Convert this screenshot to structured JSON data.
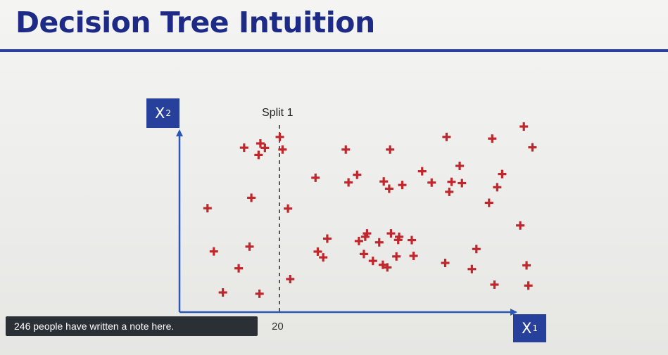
{
  "slide": {
    "title": "Decision Tree Intuition"
  },
  "chart_data": {
    "type": "scatter",
    "xlabel_main": "X",
    "xlabel_sub": "1",
    "ylabel_main": "X",
    "ylabel_sub": "2",
    "split": {
      "label": "Split 1",
      "x": 20
    },
    "x_tick_labels": [
      "20"
    ],
    "xlim": [
      0,
      100
    ],
    "ylim": [
      0,
      100
    ],
    "marker": "plus",
    "marker_color": "#c0272d",
    "axis_color": "#2a57b8",
    "points": [
      [
        6.2,
        56.0
      ],
      [
        7.6,
        32.7
      ],
      [
        9.6,
        10.6
      ],
      [
        13.1,
        23.6
      ],
      [
        15.9,
        61.6
      ],
      [
        14.3,
        88.6
      ],
      [
        17.9,
        90.9
      ],
      [
        17.5,
        84.7
      ],
      [
        18.9,
        88.5
      ],
      [
        15.5,
        35.3
      ],
      [
        17.7,
        9.9
      ],
      [
        22.2,
        94.4
      ],
      [
        22.8,
        87.6
      ],
      [
        24.0,
        55.8
      ],
      [
        24.5,
        17.8
      ],
      [
        30.1,
        72.4
      ],
      [
        30.6,
        32.6
      ],
      [
        31.8,
        29.5
      ],
      [
        32.7,
        39.6
      ],
      [
        36.8,
        87.6
      ],
      [
        37.4,
        69.9
      ],
      [
        39.3,
        74.0
      ],
      [
        40.8,
        31.3
      ],
      [
        39.7,
        38.3
      ],
      [
        41.1,
        40.6
      ],
      [
        41.5,
        42.4
      ],
      [
        44.2,
        37.6
      ],
      [
        42.8,
        27.6
      ],
      [
        45.0,
        25.5
      ],
      [
        46.0,
        24.1
      ],
      [
        45.2,
        70.4
      ],
      [
        46.4,
        66.5
      ],
      [
        46.8,
        42.4
      ],
      [
        48.0,
        30.0
      ],
      [
        48.4,
        38.9
      ],
      [
        48.6,
        40.6
      ],
      [
        46.6,
        87.6
      ],
      [
        49.3,
        68.5
      ],
      [
        51.4,
        38.8
      ],
      [
        51.8,
        30.3
      ],
      [
        53.7,
        75.9
      ],
      [
        55.8,
        69.8
      ],
      [
        58.8,
        26.5
      ],
      [
        59.1,
        94.4
      ],
      [
        59.7,
        64.8
      ],
      [
        60.2,
        70.2
      ],
      [
        62.0,
        78.8
      ],
      [
        62.5,
        69.5
      ],
      [
        64.7,
        23.2
      ],
      [
        65.7,
        34.0
      ],
      [
        68.5,
        58.9
      ],
      [
        69.2,
        93.5
      ],
      [
        70.3,
        67.3
      ],
      [
        71.4,
        74.4
      ],
      [
        69.7,
        14.8
      ],
      [
        75.4,
        46.7
      ],
      [
        76.8,
        25.2
      ],
      [
        77.2,
        14.3
      ],
      [
        78.1,
        88.8
      ],
      [
        76.2,
        100.0
      ]
    ]
  },
  "note": {
    "text": "246 people have written a note here."
  }
}
